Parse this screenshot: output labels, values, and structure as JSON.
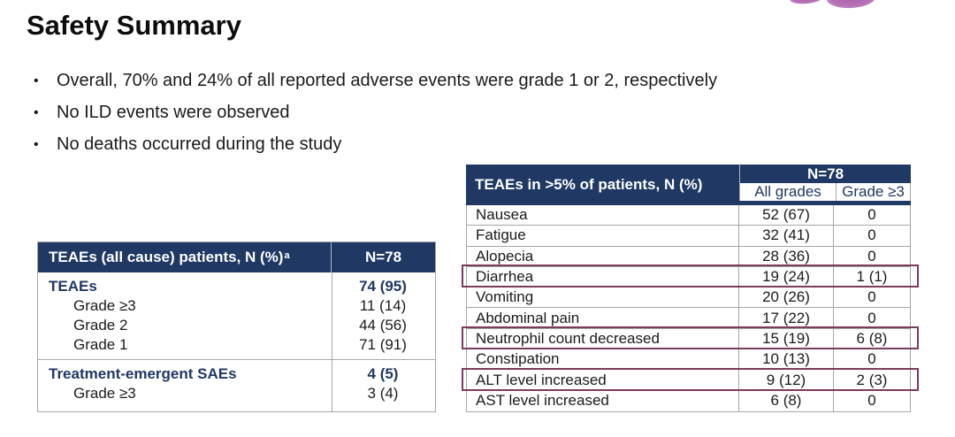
{
  "slide": {
    "title": "Safety Summary"
  },
  "bullets": {
    "char": "•",
    "items": [
      "Overall, 70% and 24% of all reported adverse events were grade 1 or 2, respectively",
      "No ILD events were observed",
      "No deaths occurred during the study"
    ]
  },
  "left_table": {
    "header": {
      "label": "TEAEs (all cause) patients, N (%)",
      "sup": "a",
      "n": "N=78"
    },
    "groups": [
      {
        "rows": [
          {
            "label": "TEAEs",
            "value": "74 (95)"
          },
          {
            "label": "Grade ≥3",
            "value": "11 (14)"
          },
          {
            "label": "Grade 2",
            "value": "44 (56)"
          },
          {
            "label": "Grade 1",
            "value": "71 (91)"
          }
        ]
      },
      {
        "rows": [
          {
            "label": "Treatment-emergent SAEs",
            "value": "4 (5)"
          },
          {
            "label": "Grade ≥3",
            "value": "3 (4)"
          }
        ]
      }
    ]
  },
  "right_table": {
    "header": {
      "label": "TEAEs in >5% of patients, N (%)",
      "n": "N=78",
      "col1": "All grades",
      "col2": "Grade ≥3"
    },
    "rows": [
      {
        "label": "Nausea",
        "all_grades": "52 (67)",
        "grade3": "0",
        "highlighted": false
      },
      {
        "label": "Fatigue",
        "all_grades": "32 (41)",
        "grade3": "0",
        "highlighted": false
      },
      {
        "label": "Alopecia",
        "all_grades": "28 (36)",
        "grade3": "0",
        "highlighted": false
      },
      {
        "label": "Diarrhea",
        "all_grades": "19 (24)",
        "grade3": "1 (1)",
        "highlighted": true
      },
      {
        "label": "Vomiting",
        "all_grades": "20 (26)",
        "grade3": "0",
        "highlighted": false
      },
      {
        "label": "Abdominal pain",
        "all_grades": "17 (22)",
        "grade3": "0",
        "highlighted": false
      },
      {
        "label": "Neutrophil count decreased",
        "all_grades": "15 (19)",
        "grade3": "6 (8)",
        "highlighted": true
      },
      {
        "label": "Constipation",
        "all_grades": "10 (13)",
        "grade3": "0",
        "highlighted": false
      },
      {
        "label": "ALT level increased",
        "all_grades": "9 (12)",
        "grade3": "2 (3)",
        "highlighted": true
      },
      {
        "label": "AST level increased",
        "all_grades": "6 (8)",
        "grade3": "0",
        "highlighted": false
      }
    ]
  },
  "colors": {
    "navy_header": "#1F3864",
    "highlight_border": "#7C3A5E",
    "logo_purple": "#B571B6",
    "table_border": "#A6A6A6"
  }
}
